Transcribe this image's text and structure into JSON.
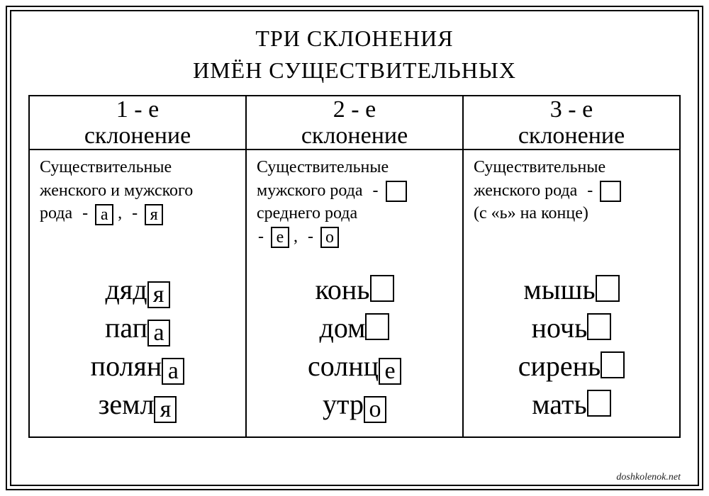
{
  "title_line1": "ТРИ СКЛОНЕНИЯ",
  "title_line2": "ИМЁН СУЩЕСТВИТЕЛЬНЫХ",
  "columns": [
    {
      "header_top": "1 - е",
      "header_bottom": "склонение",
      "desc_lines": [
        "Существительные",
        "женского и мужского"
      ],
      "desc_tail_prefix": "рода",
      "endings": [
        "а",
        "я"
      ],
      "desc_suffix": "",
      "examples": [
        {
          "stem": "дяд",
          "ending": "я"
        },
        {
          "stem": "пап",
          "ending": "а"
        },
        {
          "stem": "полян",
          "ending": "а"
        },
        {
          "stem": "земл",
          "ending": "я"
        }
      ]
    },
    {
      "header_top": "2 - е",
      "header_bottom": "склонение",
      "desc_line1": "Существительные",
      "masc_prefix": "мужского рода",
      "masc_ending_empty": true,
      "neut_line": "среднего рода",
      "neut_endings": [
        "е",
        "о"
      ],
      "examples": [
        {
          "stem": "конь",
          "ending": ""
        },
        {
          "stem": "дом",
          "ending": ""
        },
        {
          "stem": "солнц",
          "ending": "е"
        },
        {
          "stem": "утр",
          "ending": "о"
        }
      ]
    },
    {
      "header_top": "3 - е",
      "header_bottom": "склонение",
      "desc_line1": "Существительные",
      "fem_prefix": "женского рода",
      "fem_ending_empty": true,
      "fem_note": "(с «ь» на конце)",
      "examples": [
        {
          "stem": "мышь",
          "ending": ""
        },
        {
          "stem": "ночь",
          "ending": ""
        },
        {
          "stem": "сирень",
          "ending": ""
        },
        {
          "stem": "мать",
          "ending": ""
        }
      ]
    }
  ],
  "watermark": "doshkolenok.net",
  "colors": {
    "fg": "#000000",
    "bg": "#ffffff"
  }
}
